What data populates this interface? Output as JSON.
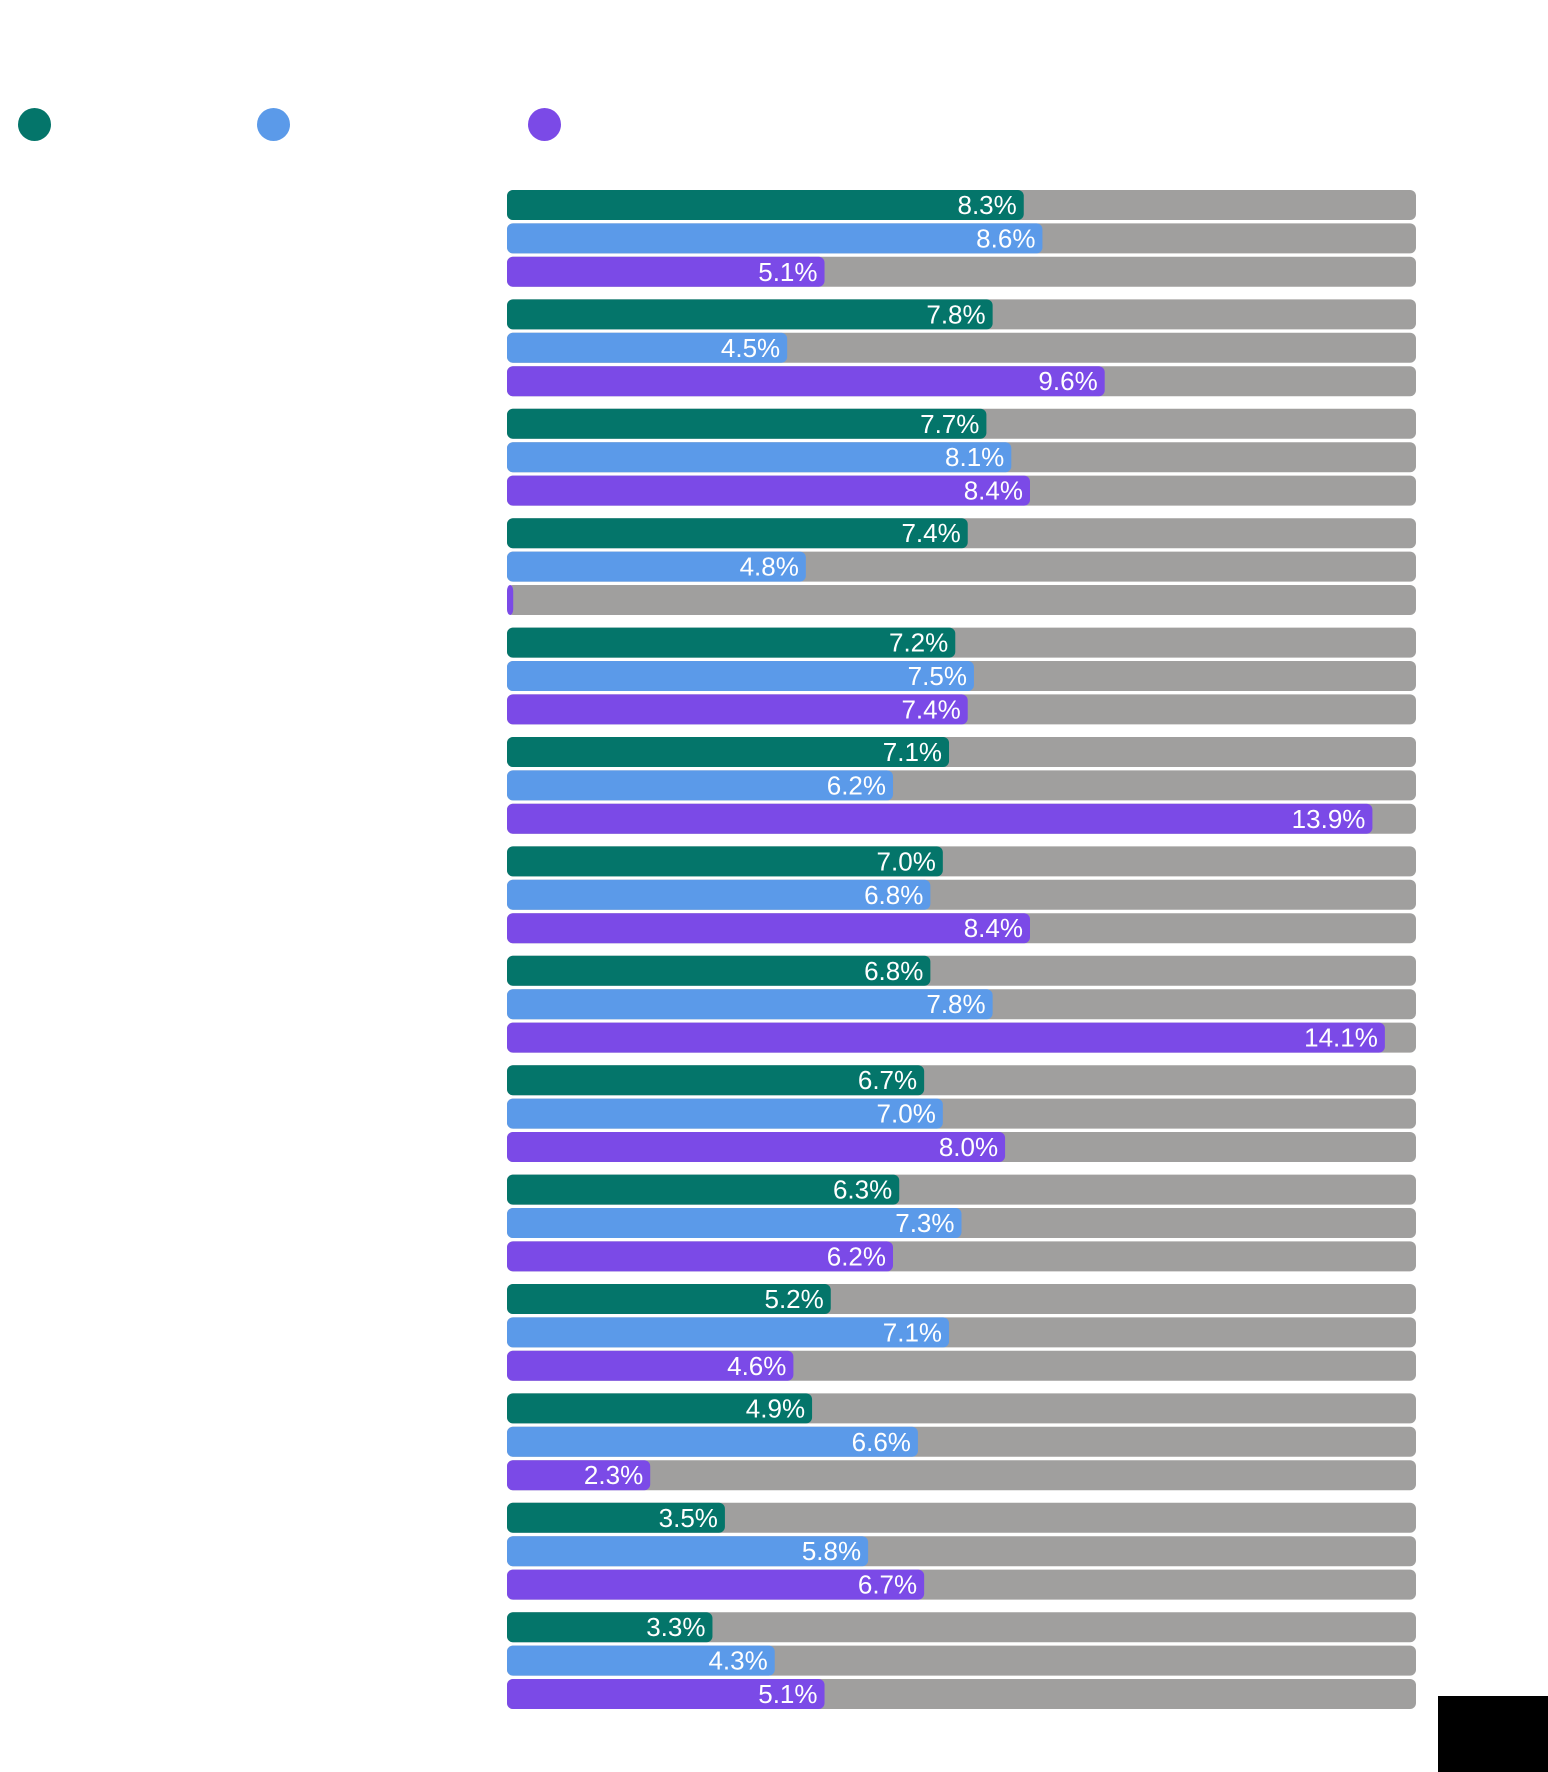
{
  "colors": {
    "track": "#a09f9e",
    "series": [
      "#04756a",
      "#5b9ae9",
      "#7b4ae7"
    ]
  },
  "legend": {
    "items": [
      {
        "label": "",
        "color": "#04756a"
      },
      {
        "label": "",
        "color": "#5b9ae9"
      },
      {
        "label": "",
        "color": "#7b4ae7"
      }
    ]
  },
  "chart_data": {
    "type": "bar",
    "orientation": "horizontal",
    "title": "",
    "xlabel": "",
    "ylabel": "",
    "xlim": [
      0,
      14.6
    ],
    "grid": false,
    "legend_position": "top-left",
    "value_suffix": "%",
    "categories": [
      "",
      "",
      "",
      "",
      "",
      "",
      "",
      "",
      "",
      "",
      "",
      "",
      "",
      ""
    ],
    "series": [
      {
        "values": [
          8.3,
          7.8,
          7.7,
          7.4,
          7.2,
          7.1,
          7.0,
          6.8,
          6.7,
          6.3,
          5.2,
          4.9,
          3.5,
          3.3
        ],
        "labels": [
          "8.3%",
          "7.8%",
          "7.7%",
          "7.4%",
          "7.2%",
          "7.1%",
          "7.0%",
          "6.8%",
          "6.7%",
          "6.3%",
          "5.2%",
          "4.9%",
          "3.5%",
          "3.3%"
        ]
      },
      {
        "values": [
          8.6,
          4.5,
          8.1,
          4.8,
          7.5,
          6.2,
          6.8,
          7.8,
          7.0,
          7.3,
          7.1,
          6.6,
          5.8,
          4.3
        ],
        "labels": [
          "8.6%",
          "4.5%",
          "8.1%",
          "4.8%",
          "7.5%",
          "6.2%",
          "6.8%",
          "7.8%",
          "7.0%",
          "7.3%",
          "7.1%",
          "6.6%",
          "5.8%",
          "4.3%"
        ]
      },
      {
        "values": [
          5.1,
          9.6,
          8.4,
          0.1,
          7.4,
          13.9,
          8.4,
          14.1,
          8.0,
          6.2,
          4.6,
          2.3,
          6.7,
          5.1
        ],
        "labels": [
          "5.1%",
          "9.6%",
          "8.4%",
          "",
          "7.4%",
          "13.9%",
          "8.4%",
          "14.1%",
          "8.0%",
          "6.2%",
          "4.6%",
          "2.3%",
          "6.7%",
          "5.1%"
        ]
      }
    ]
  }
}
